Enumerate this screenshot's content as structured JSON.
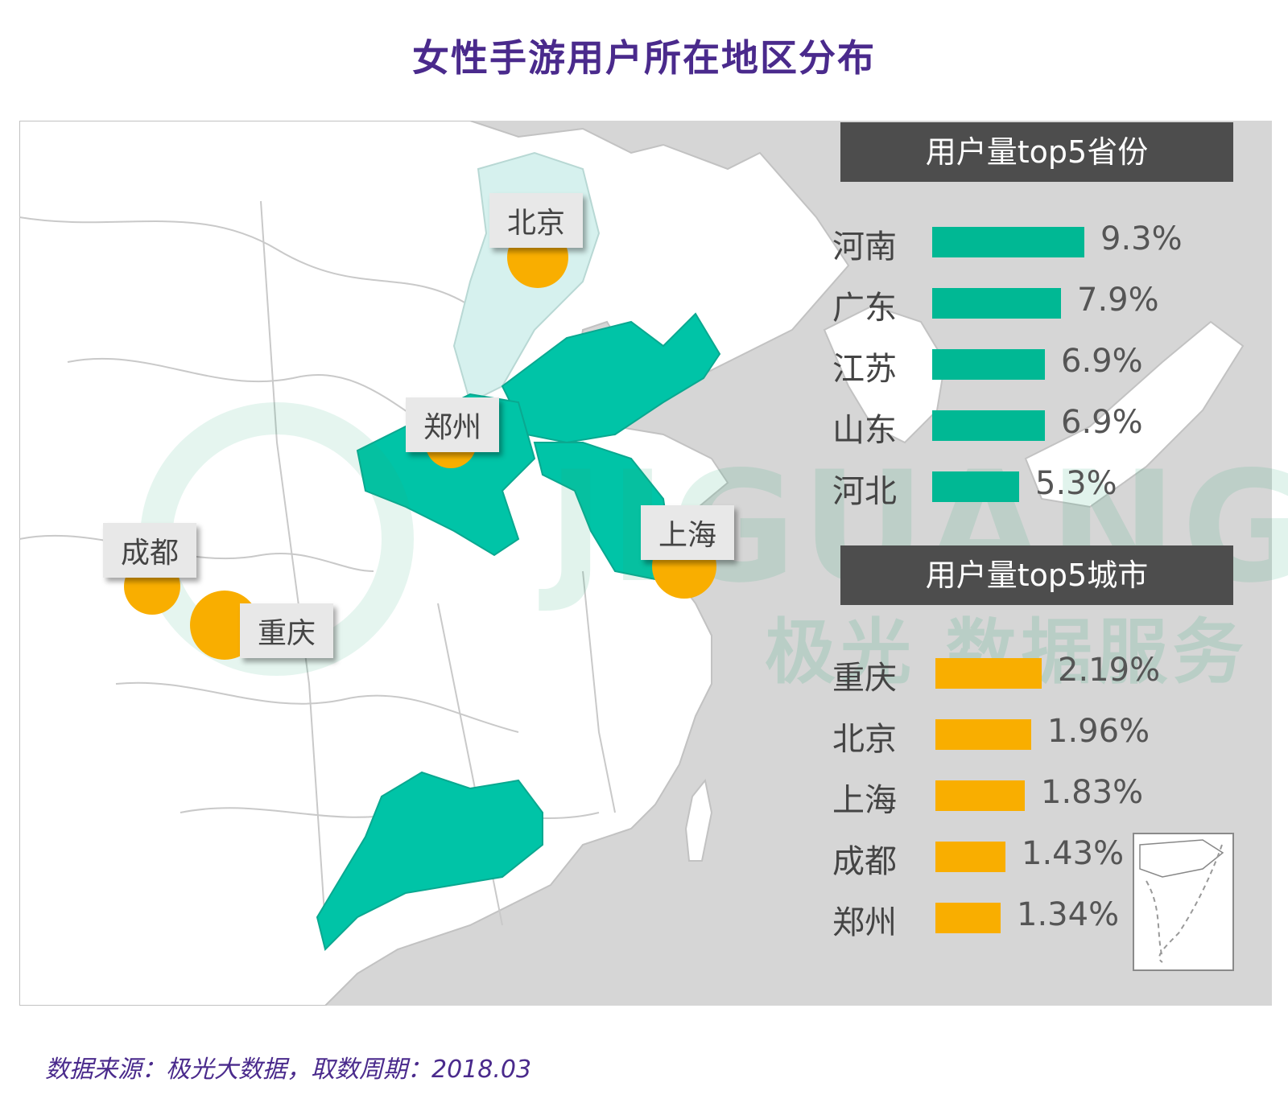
{
  "title": "女性手游用户所在地区分布",
  "colors": {
    "province_highlight": "#00c4a7",
    "beijing_hebei_area": "#d6f1ee",
    "province_bar": "#00b894",
    "city": "#f9ae00",
    "header_bg": "#4d4d4d",
    "sea": "#d6d6d6",
    "land": "#ffffff",
    "title": "#4a2a8c"
  },
  "map": {
    "highlighted_provinces": [
      "河南",
      "江苏",
      "山东",
      "广东",
      "河北",
      "北京"
    ],
    "city_markers": [
      {
        "label": "北京"
      },
      {
        "label": "郑州"
      },
      {
        "label": "成都"
      },
      {
        "label": "重庆"
      },
      {
        "label": "上海"
      }
    ]
  },
  "watermark": {
    "logo_text": "JIGUANG",
    "cn": "极光 数据服务"
  },
  "province_panel": {
    "header": "用户量top5省份",
    "rows": [
      {
        "name": "河南",
        "value": 9.3,
        "label": "9.3%"
      },
      {
        "name": "广东",
        "value": 7.9,
        "label": "7.9%"
      },
      {
        "name": "江苏",
        "value": 6.9,
        "label": "6.9%"
      },
      {
        "name": "山东",
        "value": 6.9,
        "label": "6.9%"
      },
      {
        "name": "河北",
        "value": 5.3,
        "label": "5.3%"
      }
    ]
  },
  "city_panel": {
    "header": "用户量top5城市",
    "rows": [
      {
        "name": "重庆",
        "value": 2.19,
        "label": "2.19%"
      },
      {
        "name": "北京",
        "value": 1.96,
        "label": "1.96%"
      },
      {
        "name": "上海",
        "value": 1.83,
        "label": "1.83%"
      },
      {
        "name": "成都",
        "value": 1.43,
        "label": "1.43%"
      },
      {
        "name": "郑州",
        "value": 1.34,
        "label": "1.34%"
      }
    ]
  },
  "source": "数据来源：极光大数据，取数周期：2018.03"
}
